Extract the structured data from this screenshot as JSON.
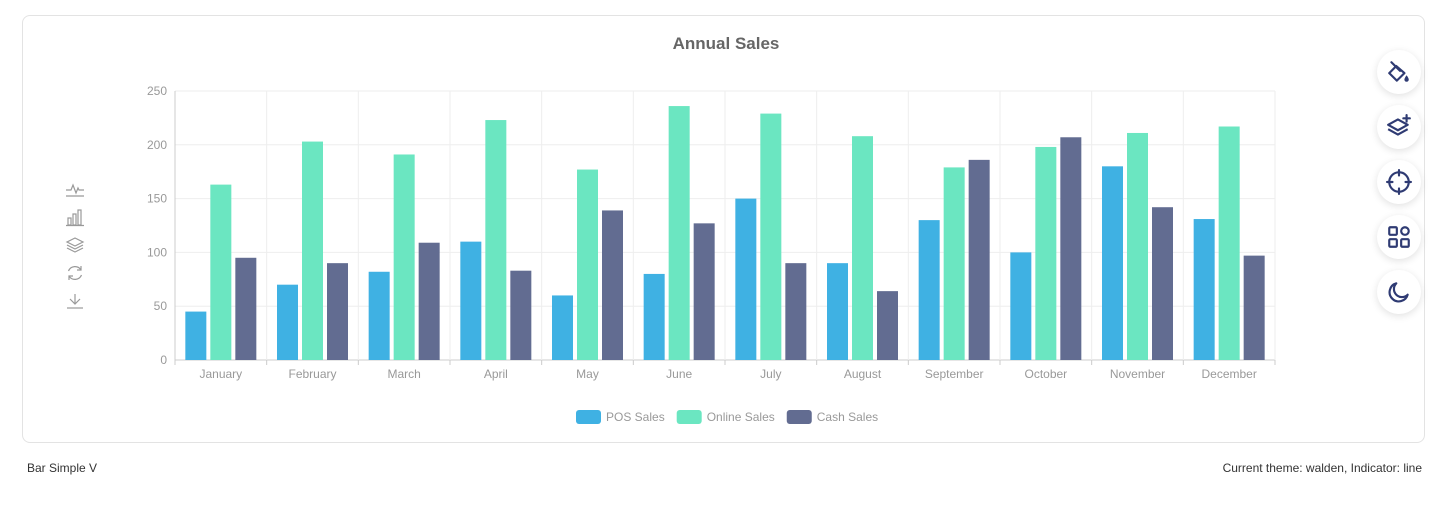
{
  "chart_data": {
    "type": "bar",
    "title": "Annual Sales",
    "categories": [
      "January",
      "February",
      "March",
      "April",
      "May",
      "June",
      "July",
      "August",
      "September",
      "October",
      "November",
      "December"
    ],
    "series": [
      {
        "name": "POS Sales",
        "color": "#3fb1e3",
        "values": [
          45,
          70,
          82,
          110,
          60,
          80,
          150,
          90,
          130,
          100,
          180,
          131
        ]
      },
      {
        "name": "Online Sales",
        "color": "#6be6c1",
        "values": [
          163,
          203,
          191,
          223,
          177,
          236,
          229,
          208,
          179,
          198,
          211,
          217
        ]
      },
      {
        "name": "Cash Sales",
        "color": "#626c91",
        "values": [
          95,
          90,
          109,
          83,
          139,
          127,
          90,
          64,
          186,
          207,
          142,
          97
        ]
      }
    ],
    "ylim": [
      0,
      250
    ],
    "yticks": [
      0,
      50,
      100,
      150,
      200,
      250
    ],
    "grid": true,
    "legend_position": "bottom-center"
  },
  "toolbox": {
    "icons": [
      "line-chart-icon",
      "bar-chart-icon",
      "stack-icon",
      "restore-icon",
      "download-icon"
    ]
  },
  "side_buttons": {
    "icons": [
      "paint-bucket-icon",
      "layers-add-icon",
      "crosshair-icon",
      "grid-apps-icon",
      "moon-icon"
    ]
  },
  "footer": {
    "left": "Bar Simple V",
    "right": "Current theme: walden, Indicator: line"
  }
}
